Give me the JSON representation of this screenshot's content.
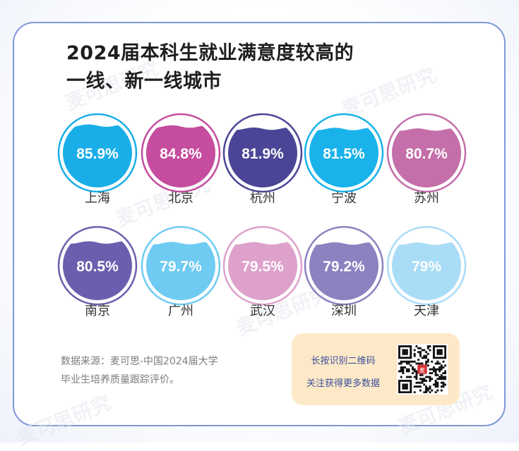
{
  "title": {
    "line1": "2024届本科生就业满意度较高的",
    "line2": "一线、新一线城市"
  },
  "chart_data": {
    "type": "bar",
    "unit": "%",
    "categories": [
      "上海",
      "北京",
      "杭州",
      "宁波",
      "苏州",
      "南京",
      "广州",
      "武汉",
      "深圳",
      "天津"
    ],
    "values": [
      85.9,
      84.8,
      81.9,
      81.5,
      80.7,
      80.5,
      79.7,
      79.5,
      79.2,
      79
    ],
    "labels": [
      "85.9%",
      "84.8%",
      "81.9%",
      "81.5%",
      "80.7%",
      "80.5%",
      "79.7%",
      "79.5%",
      "79.2%",
      "79%"
    ],
    "colors": [
      "#1aaee8",
      "#c54c9e",
      "#4a4596",
      "#19b2eb",
      "#c46eaa",
      "#6a5fae",
      "#6fcbf1",
      "#dea1cb",
      "#8b82c0",
      "#a9dcf7"
    ]
  },
  "source": {
    "line1": "数据来源：麦可思-中国2024届大学",
    "line2": "毕业生培养质量跟踪评价。"
  },
  "qr": {
    "line1": "长按识别二维码",
    "line2": "关注获得更多数据"
  },
  "watermark": "麦可思研究",
  "logo_text": "麦"
}
